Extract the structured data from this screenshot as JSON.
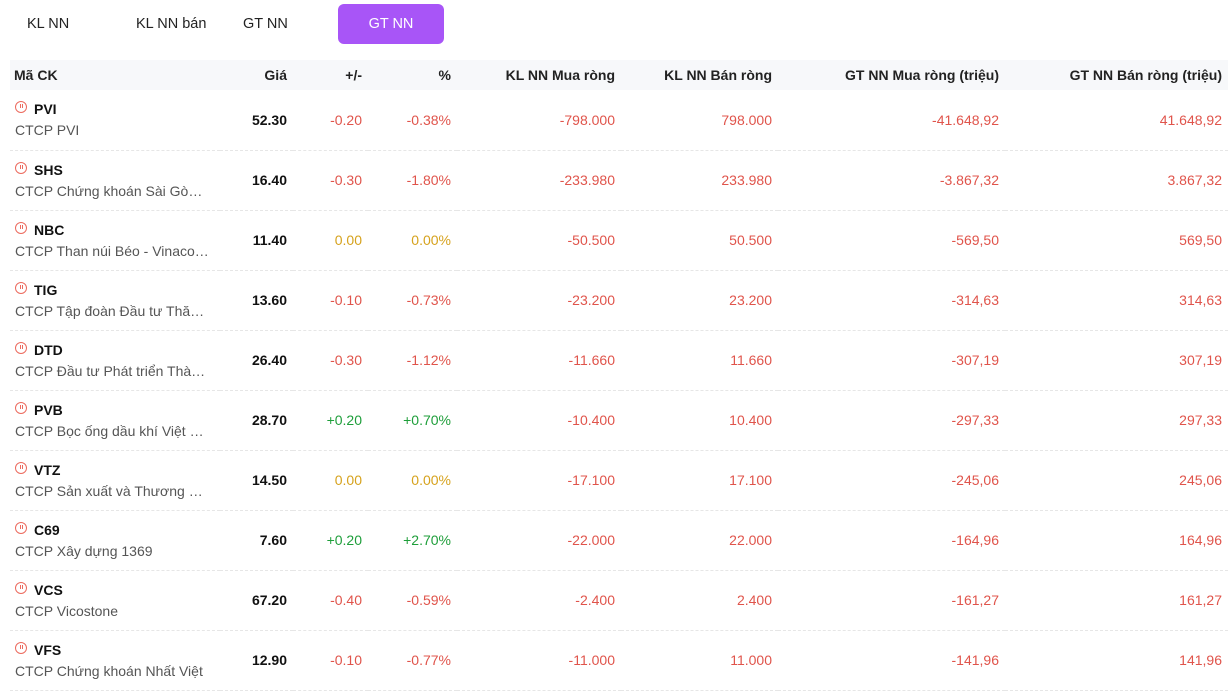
{
  "tabs": [
    {
      "label": "KL NN mua",
      "active": false
    },
    {
      "label": "KL NN bán",
      "active": false
    },
    {
      "label": "GT NN mua",
      "active": false
    },
    {
      "label": "GT NN bán",
      "active": true
    }
  ],
  "table": {
    "headers": [
      "Mã CK",
      "Giá",
      "+/-",
      "%",
      "KL NN Mua ròng",
      "KL NN Bán ròng",
      "GT NN Mua ròng (triệu)",
      "GT NN Bán ròng (triệu)"
    ],
    "rows": [
      {
        "symbol": "PVI",
        "name": "CTCP PVI",
        "price": "52.30",
        "change": "-0.20",
        "pct": "-0.38%",
        "kl_mua": "-798.000",
        "kl_ban": "798.000",
        "gt_mua": "-41.648,92",
        "gt_ban": "41.648,92",
        "trend": "red"
      },
      {
        "symbol": "SHS",
        "name": "CTCP Chứng khoán Sài Gòn – Hà Nội",
        "price": "16.40",
        "change": "-0.30",
        "pct": "-1.80%",
        "kl_mua": "-233.980",
        "kl_ban": "233.980",
        "gt_mua": "-3.867,32",
        "gt_ban": "3.867,32",
        "trend": "red"
      },
      {
        "symbol": "NBC",
        "name": "CTCP Than núi Béo - Vinacomin",
        "price": "11.40",
        "change": "0.00",
        "pct": "0.00%",
        "kl_mua": "-50.500",
        "kl_ban": "50.500",
        "gt_mua": "-569,50",
        "gt_ban": "569,50",
        "trend": "yellow"
      },
      {
        "symbol": "TIG",
        "name": "CTCP Tập đoàn Đầu tư Thăng Long",
        "price": "13.60",
        "change": "-0.10",
        "pct": "-0.73%",
        "kl_mua": "-23.200",
        "kl_ban": "23.200",
        "gt_mua": "-314,63",
        "gt_ban": "314,63",
        "trend": "red"
      },
      {
        "symbol": "DTD",
        "name": "CTCP Đầu tư Phát triển Thành Đạt",
        "price": "26.40",
        "change": "-0.30",
        "pct": "-1.12%",
        "kl_mua": "-11.660",
        "kl_ban": "11.660",
        "gt_mua": "-307,19",
        "gt_ban": "307,19",
        "trend": "red"
      },
      {
        "symbol": "PVB",
        "name": "CTCP Bọc ống dầu khí Việt Nam",
        "price": "28.70",
        "change": "+0.20",
        "pct": "+0.70%",
        "kl_mua": "-10.400",
        "kl_ban": "10.400",
        "gt_mua": "-297,33",
        "gt_ban": "297,33",
        "trend": "green"
      },
      {
        "symbol": "VTZ",
        "name": "CTCP Sản xuất và Thương mại Nhựa Việt Thành",
        "price": "14.50",
        "change": "0.00",
        "pct": "0.00%",
        "kl_mua": "-17.100",
        "kl_ban": "17.100",
        "gt_mua": "-245,06",
        "gt_ban": "245,06",
        "trend": "yellow"
      },
      {
        "symbol": "C69",
        "name": "CTCP Xây dựng 1369",
        "price": "7.60",
        "change": "+0.20",
        "pct": "+2.70%",
        "kl_mua": "-22.000",
        "kl_ban": "22.000",
        "gt_mua": "-164,96",
        "gt_ban": "164,96",
        "trend": "green"
      },
      {
        "symbol": "VCS",
        "name": "CTCP Vicostone",
        "price": "67.20",
        "change": "-0.40",
        "pct": "-0.59%",
        "kl_mua": "-2.400",
        "kl_ban": "2.400",
        "gt_mua": "-161,27",
        "gt_ban": "161,27",
        "trend": "red"
      },
      {
        "symbol": "VFS",
        "name": "CTCP Chứng khoán Nhất Việt",
        "price": "12.90",
        "change": "-0.10",
        "pct": "-0.77%",
        "kl_mua": "-11.000",
        "kl_ban": "11.000",
        "gt_mua": "-141,96",
        "gt_ban": "141,96",
        "trend": "red"
      }
    ]
  }
}
